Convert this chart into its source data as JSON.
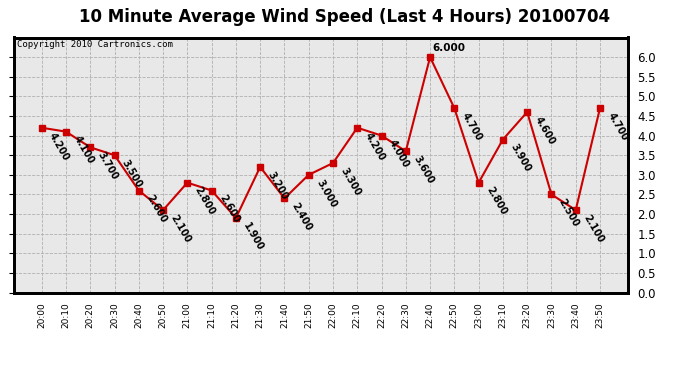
{
  "title": "10 Minute Average Wind Speed (Last 4 Hours) 20100704",
  "copyright": "Copyright 2010 Cartronics.com",
  "times": [
    "20:00",
    "20:10",
    "20:20",
    "20:30",
    "20:40",
    "20:50",
    "21:00",
    "21:10",
    "21:20",
    "21:30",
    "21:40",
    "21:50",
    "22:00",
    "22:10",
    "22:20",
    "22:30",
    "22:40",
    "22:50",
    "23:00",
    "23:10",
    "23:20",
    "23:30",
    "23:40",
    "23:50"
  ],
  "values": [
    4.2,
    4.1,
    3.7,
    3.5,
    2.6,
    2.1,
    2.8,
    2.6,
    1.9,
    3.2,
    2.4,
    3.0,
    3.3,
    4.2,
    4.0,
    3.6,
    6.0,
    4.7,
    2.8,
    3.9,
    4.6,
    2.5,
    2.1,
    4.7
  ],
  "line_color": "#cc0000",
  "marker_color": "#cc0000",
  "bg_color": "#e8e8e8",
  "ylim": [
    0.0,
    6.5
  ],
  "yticks": [
    0.0,
    0.5,
    1.0,
    1.5,
    2.0,
    2.5,
    3.0,
    3.5,
    4.0,
    4.5,
    5.0,
    5.5,
    6.0
  ],
  "grid_color": "#b0b0b0",
  "label_fontsize": 7,
  "title_fontsize": 12,
  "max_index": 16
}
